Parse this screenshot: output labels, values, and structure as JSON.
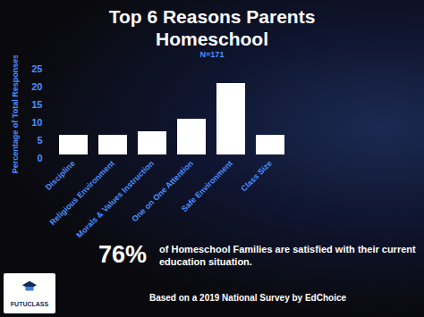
{
  "chart_data": {
    "type": "bar",
    "title": "Top 6 Reasons Parents Homeschool",
    "subtitle": "N=171",
    "y_label": "Percentage of Total Responses",
    "categories": [
      "Discipline",
      "Religious Environment",
      "Morals & Values Instruction",
      "One on One Attention",
      "Safe Environment",
      "Class Size"
    ],
    "values": [
      7.5,
      7.5,
      8.5,
      12,
      22,
      7.5
    ],
    "color": "#ffffff",
    "ylim": [
      0,
      25
    ],
    "yticks": [
      0,
      5,
      10,
      15,
      20,
      25
    ],
    "grid": false,
    "annotations": [
      "76%",
      "of Homeschool Families are satisfied with their current education situation.",
      "Based on a 2019 National Survey by EdChoice",
      "FUTUCLASS"
    ]
  }
}
